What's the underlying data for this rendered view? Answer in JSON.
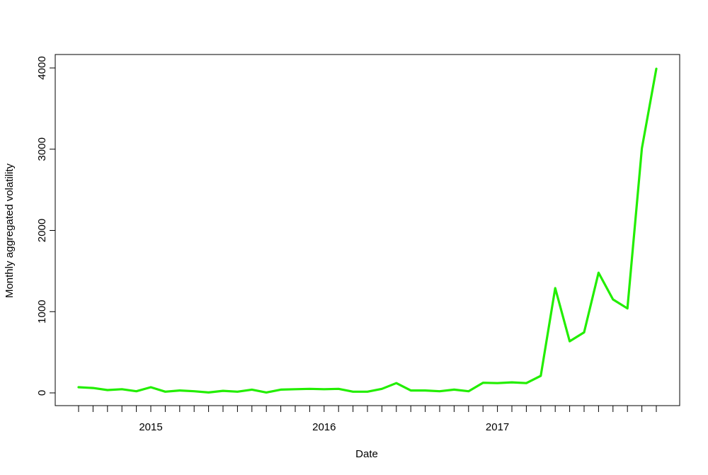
{
  "chart_data": {
    "type": "line",
    "title": "",
    "xlabel": "Date",
    "ylabel": "Monthly aggregated volatility",
    "x_tick_labels": [
      "2015",
      "2016",
      "2017"
    ],
    "y_tick_labels": [
      "0",
      "1000",
      "2000",
      "3000",
      "4000"
    ],
    "y_ticks": [
      0,
      1000,
      2000,
      3000,
      4000
    ],
    "x_range": [
      "2014-08",
      "2017-12"
    ],
    "ylim": [
      -150,
      4150
    ],
    "grid": false,
    "legend": "none",
    "series": [
      {
        "color": "#22ee00",
        "x": [
          "2014-08",
          "2014-09",
          "2014-10",
          "2014-11",
          "2014-12",
          "2015-01",
          "2015-02",
          "2015-03",
          "2015-04",
          "2015-05",
          "2015-06",
          "2015-07",
          "2015-08",
          "2015-09",
          "2015-10",
          "2015-11",
          "2015-12",
          "2016-01",
          "2016-02",
          "2016-03",
          "2016-04",
          "2016-05",
          "2016-06",
          "2016-07",
          "2016-08",
          "2016-09",
          "2016-10",
          "2016-11",
          "2016-12",
          "2017-01",
          "2017-02",
          "2017-03",
          "2017-04",
          "2017-05",
          "2017-06",
          "2017-07",
          "2017-08",
          "2017-09",
          "2017-10",
          "2017-11",
          "2017-12"
        ],
        "values": [
          70,
          60,
          35,
          45,
          20,
          70,
          15,
          30,
          20,
          5,
          25,
          15,
          40,
          5,
          40,
          45,
          50,
          45,
          50,
          15,
          15,
          50,
          120,
          30,
          30,
          20,
          40,
          20,
          125,
          120,
          130,
          120,
          210,
          1290,
          635,
          745,
          1480,
          1150,
          1040,
          3010,
          3990
        ]
      }
    ]
  }
}
